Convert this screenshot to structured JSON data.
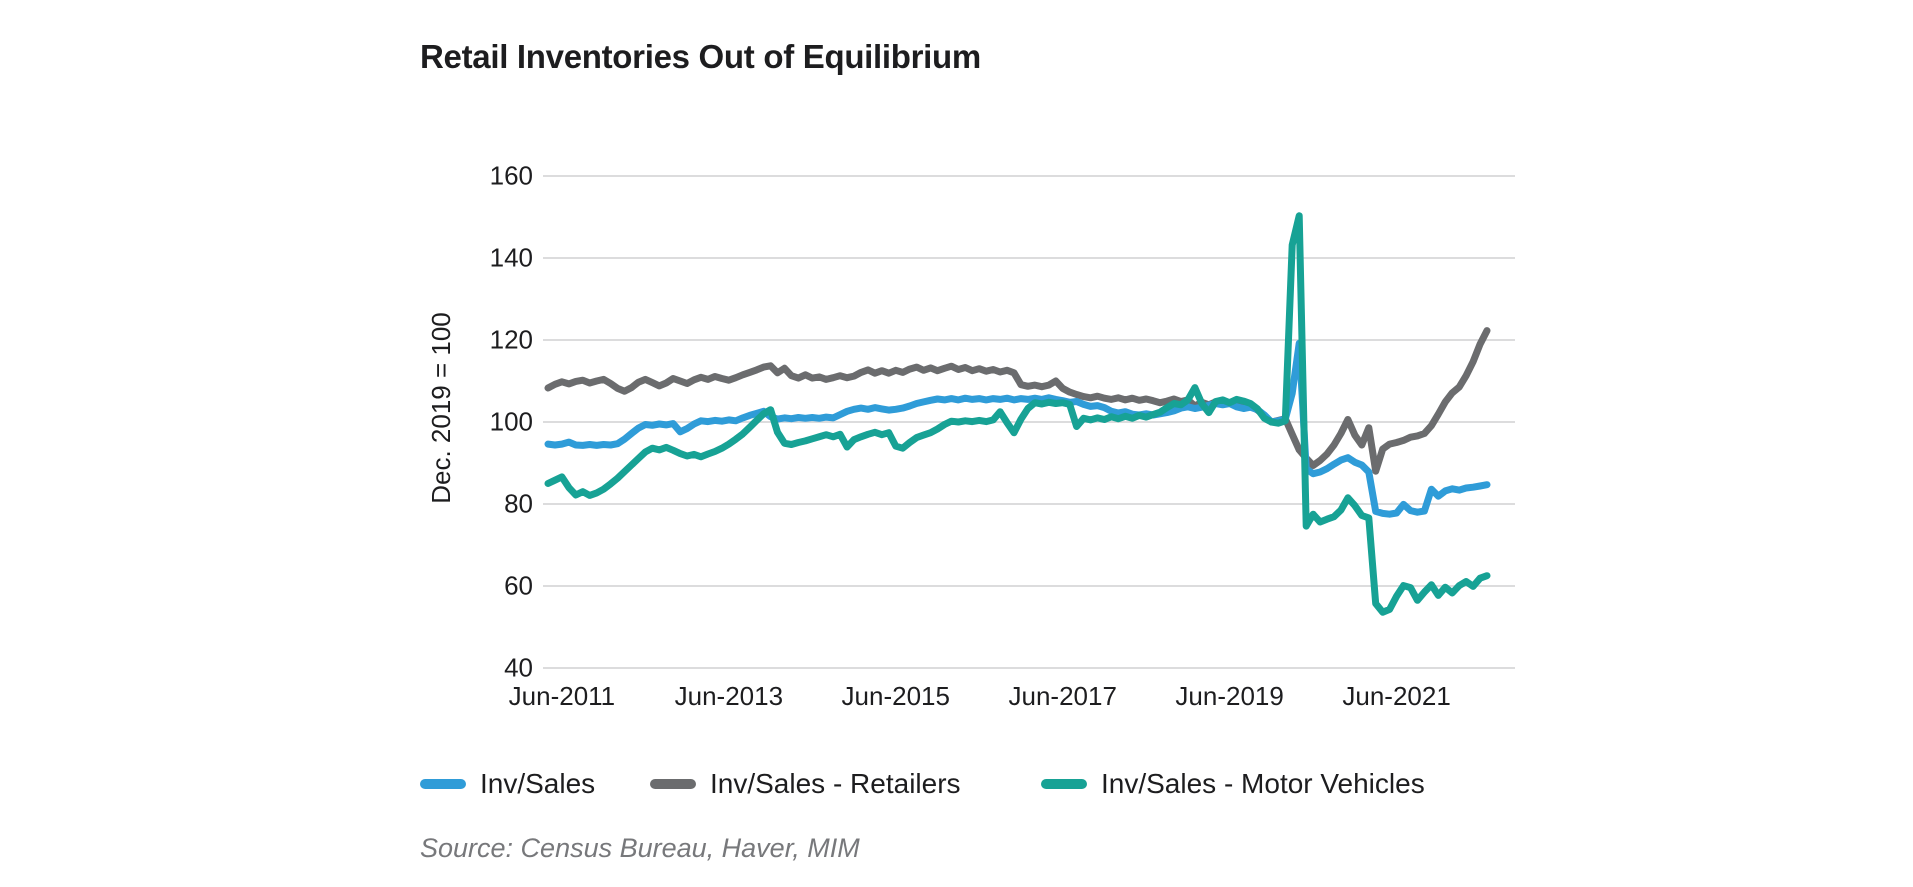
{
  "title": "Retail Inventories Out of Equilibrium",
  "source": "Source: Census Bureau, Haver, MIM",
  "y_axis": {
    "title": "Dec. 2019 = 100",
    "ticks": [
      160,
      140,
      120,
      100,
      80,
      60,
      40
    ]
  },
  "x_axis": {
    "ticks": [
      {
        "label": "Jun-2011",
        "month_index": 2
      },
      {
        "label": "Jun-2013",
        "month_index": 26
      },
      {
        "label": "Jun-2015",
        "month_index": 50
      },
      {
        "label": "Jun-2017",
        "month_index": 74
      },
      {
        "label": "Jun-2019",
        "month_index": 98
      },
      {
        "label": "Jun-2021",
        "month_index": 122
      }
    ]
  },
  "legend": {
    "items": [
      {
        "label": "Inv/Sales",
        "color": "#2f9cd8"
      },
      {
        "label": "Inv/Sales - Retailers",
        "color": "#6b6c6e"
      },
      {
        "label": "Inv/Sales - Motor Vehicles",
        "color": "#17a295"
      }
    ]
  },
  "colors": {
    "gridline": "#dcdcdd",
    "text": "#1d1d1f",
    "source_text": "#77787b",
    "background": "#ffffff"
  },
  "chart_data": {
    "type": "line",
    "title": "Retail Inventories Out of Equilibrium",
    "xlabel": "",
    "ylabel": "Dec. 2019 = 100",
    "ylim": [
      40,
      160
    ],
    "grid": "horizontal",
    "legend_position": "bottom",
    "frequency": "monthly",
    "months": [
      "2011-04",
      "2011-05",
      "2011-06",
      "2011-07",
      "2011-08",
      "2011-09",
      "2011-10",
      "2011-11",
      "2011-12",
      "2012-01",
      "2012-02",
      "2012-03",
      "2012-04",
      "2012-05",
      "2012-06",
      "2012-07",
      "2012-08",
      "2012-09",
      "2012-10",
      "2012-11",
      "2012-12",
      "2013-01",
      "2013-02",
      "2013-03",
      "2013-04",
      "2013-05",
      "2013-06",
      "2013-07",
      "2013-08",
      "2013-09",
      "2013-10",
      "2013-11",
      "2013-12",
      "2014-01",
      "2014-02",
      "2014-03",
      "2014-04",
      "2014-05",
      "2014-06",
      "2014-07",
      "2014-08",
      "2014-09",
      "2014-10",
      "2014-11",
      "2014-12",
      "2015-01",
      "2015-02",
      "2015-03",
      "2015-04",
      "2015-05",
      "2015-06",
      "2015-07",
      "2015-08",
      "2015-09",
      "2015-10",
      "2015-11",
      "2015-12",
      "2016-01",
      "2016-02",
      "2016-03",
      "2016-04",
      "2016-05",
      "2016-06",
      "2016-07",
      "2016-08",
      "2016-09",
      "2016-10",
      "2016-11",
      "2016-12",
      "2017-01",
      "2017-02",
      "2017-03",
      "2017-04",
      "2017-05",
      "2017-06",
      "2017-07",
      "2017-08",
      "2017-09",
      "2017-10",
      "2017-11",
      "2017-12",
      "2018-01",
      "2018-02",
      "2018-03",
      "2018-04",
      "2018-05",
      "2018-06",
      "2018-07",
      "2018-08",
      "2018-09",
      "2018-10",
      "2018-11",
      "2018-12",
      "2019-01",
      "2019-02",
      "2019-03",
      "2019-04",
      "2019-05",
      "2019-06",
      "2019-07",
      "2019-08",
      "2019-09",
      "2019-10",
      "2019-11",
      "2019-12",
      "2020-01",
      "2020-02",
      "2020-03",
      "2020-04",
      "2020-05",
      "2020-06",
      "2020-07",
      "2020-08",
      "2020-09",
      "2020-10",
      "2020-11",
      "2020-12",
      "2021-01",
      "2021-02",
      "2021-03",
      "2021-04",
      "2021-05",
      "2021-06",
      "2021-07",
      "2021-08",
      "2021-09",
      "2021-10",
      "2021-11",
      "2021-12",
      "2022-01",
      "2022-02",
      "2022-03",
      "2022-04",
      "2022-05",
      "2022-06",
      "2022-07"
    ],
    "series": [
      {
        "name": "Inv/Sales",
        "color": "#2f9cd8",
        "values": [
          94.6,
          94.4,
          94.6,
          95.1,
          94.4,
          94.3,
          94.5,
          94.3,
          94.5,
          94.4,
          94.7,
          95.8,
          97.2,
          98.5,
          99.4,
          99.2,
          99.5,
          99.3,
          99.6,
          97.6,
          98.4,
          99.5,
          100.3,
          100.1,
          100.4,
          100.2,
          100.5,
          100.3,
          101.0,
          101.6,
          102.1,
          102.6,
          101.3,
          100.7,
          101.0,
          100.8,
          101.1,
          100.9,
          101.1,
          100.9,
          101.2,
          101.0,
          101.8,
          102.6,
          103.1,
          103.4,
          103.1,
          103.5,
          103.2,
          102.9,
          103.1,
          103.4,
          103.9,
          104.5,
          104.9,
          105.3,
          105.6,
          105.4,
          105.7,
          105.4,
          105.8,
          105.5,
          105.7,
          105.4,
          105.7,
          105.5,
          105.8,
          105.4,
          105.7,
          105.5,
          105.8,
          105.5,
          105.9,
          105.5,
          105.2,
          104.8,
          105.0,
          104.3,
          103.8,
          104.0,
          103.5,
          102.6,
          102.2,
          102.5,
          101.9,
          101.7,
          102.0,
          101.7,
          102.0,
          102.3,
          102.7,
          103.4,
          103.7,
          103.3,
          103.6,
          104.1,
          104.5,
          104.2,
          104.5,
          103.7,
          103.3,
          103.6,
          103.0,
          101.7,
          100.0,
          100.3,
          100.7,
          107.0,
          119.2,
          88.6,
          87.4,
          87.8,
          88.6,
          89.7,
          90.7,
          91.3,
          90.2,
          89.5,
          87.8,
          78.2,
          77.7,
          77.5,
          77.8,
          79.9,
          78.4,
          78.0,
          78.3,
          83.6,
          81.9,
          83.2,
          83.7,
          83.4,
          83.9,
          84.1,
          84.4,
          84.7
        ]
      },
      {
        "name": "Inv/Sales - Retailers",
        "color": "#6b6c6e",
        "values": [
          108.3,
          109.2,
          109.8,
          109.3,
          109.9,
          110.2,
          109.5,
          110.0,
          110.4,
          109.4,
          108.2,
          107.5,
          108.4,
          109.7,
          110.4,
          109.6,
          108.8,
          109.5,
          110.6,
          110.0,
          109.4,
          110.3,
          110.9,
          110.4,
          111.1,
          110.6,
          110.2,
          110.8,
          111.5,
          112.1,
          112.7,
          113.4,
          113.7,
          112.0,
          113.1,
          111.3,
          110.7,
          111.5,
          110.7,
          111.0,
          110.4,
          110.8,
          111.3,
          110.8,
          111.2,
          112.1,
          112.7,
          111.9,
          112.5,
          111.9,
          112.6,
          112.1,
          112.9,
          113.4,
          112.6,
          113.2,
          112.5,
          113.1,
          113.6,
          112.8,
          113.3,
          112.5,
          113.0,
          112.4,
          112.8,
          112.2,
          112.6,
          112.0,
          109.1,
          108.7,
          109.0,
          108.6,
          109.0,
          110.0,
          108.2,
          107.3,
          106.7,
          106.2,
          105.9,
          106.3,
          105.8,
          105.5,
          105.9,
          105.4,
          105.8,
          105.3,
          105.6,
          105.2,
          104.7,
          105.1,
          105.6,
          105.0,
          105.4,
          103.9,
          104.8,
          104.2,
          104.9,
          104.4,
          104.7,
          104.2,
          103.7,
          104.1,
          102.9,
          101.6,
          100.0,
          100.4,
          100.8,
          97.0,
          93.2,
          91.2,
          89.4,
          90.6,
          92.2,
          94.4,
          97.2,
          100.6,
          96.8,
          94.4,
          98.6,
          88.0,
          93.4,
          94.6,
          95.0,
          95.5,
          96.3,
          96.6,
          97.2,
          99.1,
          101.9,
          104.9,
          107.1,
          108.5,
          111.3,
          114.7,
          119.0,
          122.3
        ]
      },
      {
        "name": "Inv/Sales - Motor Vehicles",
        "color": "#17a295",
        "values": [
          85.0,
          85.8,
          86.6,
          84.0,
          82.2,
          83.0,
          82.1,
          82.7,
          83.6,
          84.9,
          86.3,
          87.9,
          89.5,
          91.1,
          92.7,
          93.6,
          93.2,
          93.8,
          93.1,
          92.3,
          91.7,
          92.1,
          91.5,
          92.2,
          92.8,
          93.6,
          94.6,
          95.8,
          97.1,
          98.7,
          100.4,
          102.0,
          103.0,
          97.5,
          94.8,
          94.5,
          95.0,
          95.4,
          95.9,
          96.4,
          96.9,
          96.4,
          97.0,
          93.9,
          95.7,
          96.4,
          97.0,
          97.5,
          96.9,
          97.4,
          94.1,
          93.6,
          95.0,
          96.2,
          96.8,
          97.4,
          98.3,
          99.4,
          100.2,
          100.0,
          100.3,
          100.1,
          100.4,
          100.1,
          100.5,
          102.5,
          99.8,
          97.4,
          100.7,
          103.3,
          104.7,
          104.4,
          104.8,
          104.5,
          104.7,
          104.3,
          98.9,
          100.9,
          100.5,
          101.0,
          100.6,
          101.3,
          100.8,
          101.4,
          100.9,
          101.6,
          101.2,
          101.8,
          102.4,
          103.5,
          104.5,
          104.2,
          105.4,
          108.4,
          104.5,
          102.3,
          105.0,
          105.4,
          104.7,
          105.5,
          105.1,
          104.5,
          103.2,
          100.9,
          100.0,
          99.7,
          100.3,
          143.2,
          150.3,
          74.6,
          77.5,
          75.6,
          76.3,
          76.9,
          78.5,
          81.5,
          79.6,
          77.2,
          76.6,
          55.7,
          53.6,
          54.3,
          57.5,
          60.1,
          59.6,
          56.5,
          58.5,
          60.3,
          57.7,
          59.7,
          58.3,
          60.1,
          61.1,
          59.9,
          61.9,
          62.5
        ]
      }
    ]
  }
}
